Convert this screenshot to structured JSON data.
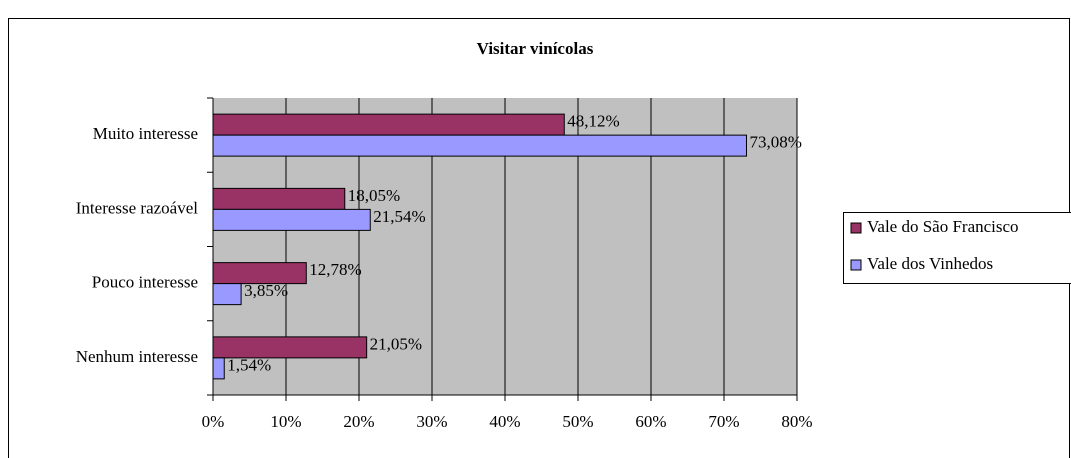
{
  "chart_data": {
    "type": "hbar",
    "title": "Visitar vinícolas",
    "categories": [
      "Muito interesse",
      "Interesse razoável",
      "Pouco interesse",
      "Nenhum interesse"
    ],
    "series": [
      {
        "name": "Vale do São Francisco",
        "color": "#993366",
        "values": [
          48.12,
          18.05,
          12.78,
          21.05
        ],
        "value_labels": [
          "48,12%",
          "18,05%",
          "12,78%",
          "21,05%"
        ]
      },
      {
        "name": "Vale dos Vinhedos",
        "color": "#9999ff",
        "values": [
          73.08,
          21.54,
          3.85,
          1.54
        ],
        "value_labels": [
          "73,08%",
          "21,54%",
          "3,85%",
          "1,54%"
        ]
      }
    ],
    "xlim": [
      0,
      80
    ],
    "xticks": [
      {
        "value": 0,
        "label": "0%"
      },
      {
        "value": 10,
        "label": "10%"
      },
      {
        "value": 20,
        "label": "20%"
      },
      {
        "value": 30,
        "label": "30%"
      },
      {
        "value": 40,
        "label": "40%"
      },
      {
        "value": 50,
        "label": "50%"
      },
      {
        "value": 60,
        "label": "60%"
      },
      {
        "value": 70,
        "label": "70%"
      },
      {
        "value": 80,
        "label": "80%"
      }
    ],
    "grid": true,
    "legend": "right"
  }
}
